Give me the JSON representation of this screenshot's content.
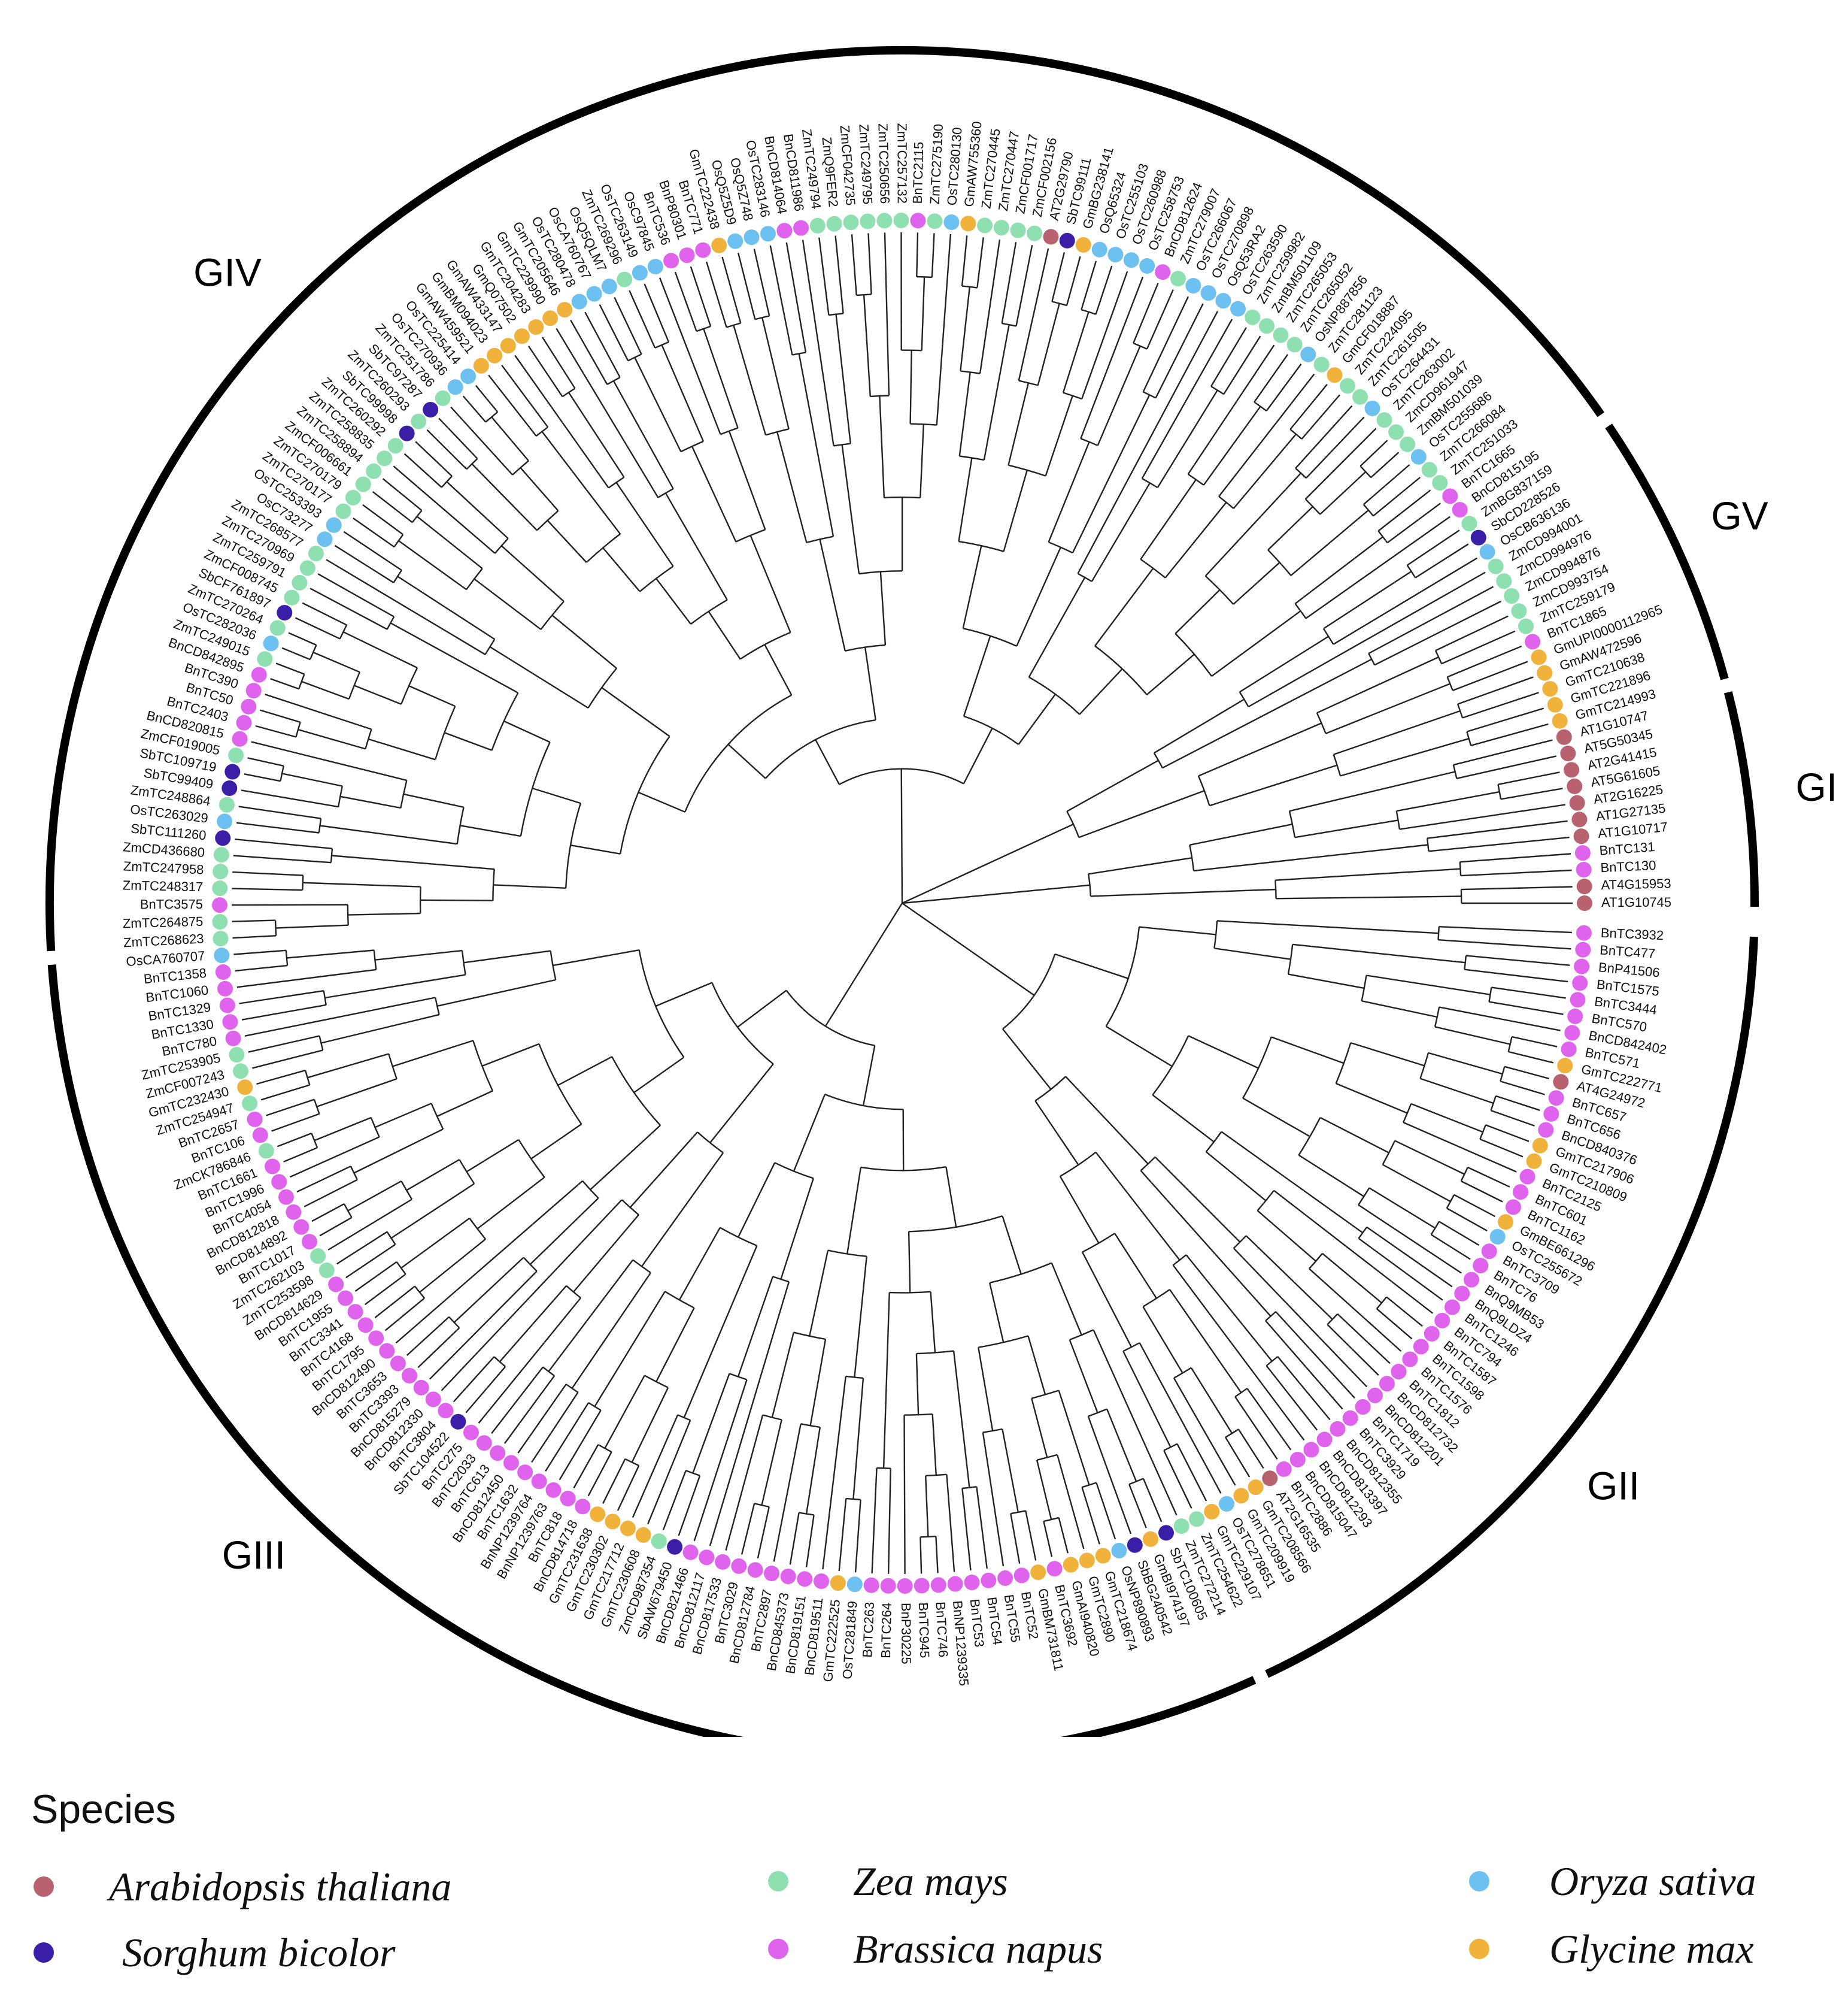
{
  "species": [
    {
      "key": "at",
      "name": "Arabidopsis thaliana",
      "color": "#b8616f"
    },
    {
      "key": "zm",
      "name": "Zea mays",
      "color": "#8fe0b0"
    },
    {
      "key": "os",
      "name": "Oryza sativa",
      "color": "#6cc1f0"
    },
    {
      "key": "sb",
      "name": "Sorghum bicolor",
      "color": "#3a1ea8"
    },
    {
      "key": "bn",
      "name": "Brassica napus",
      "color": "#e063ee"
    },
    {
      "key": "gm",
      "name": "Glycine max",
      "color": "#f0b23a"
    }
  ],
  "legend": {
    "title": "Species"
  },
  "clades": [
    {
      "label": "GI"
    },
    {
      "label": "GV"
    },
    {
      "label": "GIV"
    },
    {
      "label": "GIII"
    },
    {
      "label": "GII"
    }
  ],
  "leaves": [
    {
      "id": "AT1G10745",
      "sp": "at"
    },
    {
      "id": "AT4G15953",
      "sp": "at"
    },
    {
      "id": "BnTC130",
      "sp": "bn"
    },
    {
      "id": "BnTC131",
      "sp": "bn"
    },
    {
      "id": "AT1G10717",
      "sp": "at"
    },
    {
      "id": "AT1G27135",
      "sp": "at"
    },
    {
      "id": "AT2G16225",
      "sp": "at"
    },
    {
      "id": "AT5G61605",
      "sp": "at"
    },
    {
      "id": "AT2G41415",
      "sp": "at"
    },
    {
      "id": "AT5G50345",
      "sp": "at"
    },
    {
      "id": "AT1G10747",
      "sp": "at"
    },
    {
      "id": "GmTC214993",
      "sp": "gm"
    },
    {
      "id": "GmTC221896",
      "sp": "gm"
    },
    {
      "id": "GmTC210638",
      "sp": "gm"
    },
    {
      "id": "GmAW472596",
      "sp": "gm"
    },
    {
      "id": "GmUPI0000112965",
      "sp": "gm"
    },
    {
      "id": "BnTC1865",
      "sp": "bn"
    },
    {
      "id": "ZmTC259179",
      "sp": "zm"
    },
    {
      "id": "ZmCD993754",
      "sp": "zm"
    },
    {
      "id": "ZmCD994876",
      "sp": "zm"
    },
    {
      "id": "ZmCD994976",
      "sp": "zm"
    },
    {
      "id": "ZmCD994001",
      "sp": "zm"
    },
    {
      "id": "OsCB636136",
      "sp": "os"
    },
    {
      "id": "SbCD228526",
      "sp": "sb"
    },
    {
      "id": "ZmBG837159",
      "sp": "zm"
    },
    {
      "id": "BnCD815195",
      "sp": "bn"
    },
    {
      "id": "BnTC1665",
      "sp": "bn"
    },
    {
      "id": "ZmTC251033",
      "sp": "zm"
    },
    {
      "id": "ZmTC266084",
      "sp": "zm"
    },
    {
      "id": "OsTC255686",
      "sp": "os"
    },
    {
      "id": "ZmBM501039",
      "sp": "zm"
    },
    {
      "id": "ZmCD961947",
      "sp": "zm"
    },
    {
      "id": "ZmTC263002",
      "sp": "zm"
    },
    {
      "id": "OsTC264431",
      "sp": "os"
    },
    {
      "id": "ZmTC261505",
      "sp": "zm"
    },
    {
      "id": "ZmTC224095",
      "sp": "zm"
    },
    {
      "id": "GmCF018887",
      "sp": "gm"
    },
    {
      "id": "ZmTC281123",
      "sp": "zm"
    },
    {
      "id": "OsNP887856",
      "sp": "os"
    },
    {
      "id": "ZmTC265052",
      "sp": "zm"
    },
    {
      "id": "ZmTC265053",
      "sp": "zm"
    },
    {
      "id": "ZmBM501109",
      "sp": "zm"
    },
    {
      "id": "ZmTC259982",
      "sp": "zm"
    },
    {
      "id": "OsTC263590",
      "sp": "os"
    },
    {
      "id": "OsQ53RA2",
      "sp": "os"
    },
    {
      "id": "OsTC270898",
      "sp": "os"
    },
    {
      "id": "OsTC266067",
      "sp": "os"
    },
    {
      "id": "ZmTC279007",
      "sp": "zm"
    },
    {
      "id": "BnCD812624",
      "sp": "bn"
    },
    {
      "id": "OsTC258753",
      "sp": "os"
    },
    {
      "id": "OsTC260988",
      "sp": "os"
    },
    {
      "id": "OsTC255103",
      "sp": "os"
    },
    {
      "id": "OsQ65324",
      "sp": "os"
    },
    {
      "id": "GmBG238141",
      "sp": "gm"
    },
    {
      "id": "SbTC99111",
      "sp": "sb"
    },
    {
      "id": "AT2G29790",
      "sp": "at"
    },
    {
      "id": "ZmCF002156",
      "sp": "zm"
    },
    {
      "id": "ZmCF001717",
      "sp": "zm"
    },
    {
      "id": "ZmTC270447",
      "sp": "zm"
    },
    {
      "id": "ZmTC270445",
      "sp": "zm"
    },
    {
      "id": "GmAW755360",
      "sp": "gm"
    },
    {
      "id": "OsTC280130",
      "sp": "os"
    },
    {
      "id": "ZmTC275190",
      "sp": "zm"
    },
    {
      "id": "BnTC2115",
      "sp": "bn"
    },
    {
      "id": "ZmTC257132",
      "sp": "zm"
    },
    {
      "id": "ZmTC250656",
      "sp": "zm"
    },
    {
      "id": "ZmTC249795",
      "sp": "zm"
    },
    {
      "id": "ZmCF042735",
      "sp": "zm"
    },
    {
      "id": "ZmQ9FER2",
      "sp": "zm"
    },
    {
      "id": "ZmTC249794",
      "sp": "zm"
    },
    {
      "id": "BnCD811986",
      "sp": "bn"
    },
    {
      "id": "BnCD814064",
      "sp": "bn"
    },
    {
      "id": "OsTC283146",
      "sp": "os"
    },
    {
      "id": "OsQ5Z748",
      "sp": "os"
    },
    {
      "id": "OsQ5Z5D9",
      "sp": "os"
    },
    {
      "id": "GmTC222438",
      "sp": "gm"
    },
    {
      "id": "BnTC771",
      "sp": "bn"
    },
    {
      "id": "BnP80301",
      "sp": "bn"
    },
    {
      "id": "BnTC536",
      "sp": "bn"
    },
    {
      "id": "OsC97845",
      "sp": "os"
    },
    {
      "id": "OsTC263149",
      "sp": "os"
    },
    {
      "id": "ZmTC269296",
      "sp": "zm"
    },
    {
      "id": "OsQ5QLM7",
      "sp": "os"
    },
    {
      "id": "OsCA760767",
      "sp": "os"
    },
    {
      "id": "OsTC280478",
      "sp": "os"
    },
    {
      "id": "GmTC205646",
      "sp": "gm"
    },
    {
      "id": "GmTC229990",
      "sp": "gm"
    },
    {
      "id": "GmTC204283",
      "sp": "gm"
    },
    {
      "id": "GmQ07502",
      "sp": "gm"
    },
    {
      "id": "GmAW433147",
      "sp": "gm"
    },
    {
      "id": "GmBM094023",
      "sp": "gm"
    },
    {
      "id": "GmAW459521",
      "sp": "gm"
    },
    {
      "id": "OsTC225414",
      "sp": "os"
    },
    {
      "id": "OsTC270936",
      "sp": "os"
    },
    {
      "id": "ZmTC251786",
      "sp": "zm"
    },
    {
      "id": "SbTC97287",
      "sp": "sb"
    },
    {
      "id": "ZmTC260293",
      "sp": "zm"
    },
    {
      "id": "SbTC99998",
      "sp": "sb"
    },
    {
      "id": "ZmTC260292",
      "sp": "zm"
    },
    {
      "id": "ZmTC258835",
      "sp": "zm"
    },
    {
      "id": "ZmTC258894",
      "sp": "zm"
    },
    {
      "id": "ZmCF006661",
      "sp": "zm"
    },
    {
      "id": "ZmTC270179",
      "sp": "zm"
    },
    {
      "id": "ZmTC270177",
      "sp": "zm"
    },
    {
      "id": "OsTC253393",
      "sp": "os"
    },
    {
      "id": "OsC73277",
      "sp": "os"
    },
    {
      "id": "ZmTC268577",
      "sp": "zm"
    },
    {
      "id": "ZmTC270969",
      "sp": "zm"
    },
    {
      "id": "ZmTC259791",
      "sp": "zm"
    },
    {
      "id": "ZmCF008745",
      "sp": "zm"
    },
    {
      "id": "SbCF761897",
      "sp": "sb"
    },
    {
      "id": "ZmTC270264",
      "sp": "zm"
    },
    {
      "id": "OsTC282036",
      "sp": "os"
    },
    {
      "id": "ZmTC249015",
      "sp": "zm"
    },
    {
      "id": "BnCD842895",
      "sp": "bn"
    },
    {
      "id": "BnTC390",
      "sp": "bn"
    },
    {
      "id": "BnTC50",
      "sp": "bn"
    },
    {
      "id": "BnTC2403",
      "sp": "bn"
    },
    {
      "id": "BnCD820815",
      "sp": "bn"
    },
    {
      "id": "ZmCF019005",
      "sp": "zm"
    },
    {
      "id": "SbTC109719",
      "sp": "sb"
    },
    {
      "id": "SbTC99409",
      "sp": "sb"
    },
    {
      "id": "ZmTC248864",
      "sp": "zm"
    },
    {
      "id": "OsTC263029",
      "sp": "os"
    },
    {
      "id": "SbTC111260",
      "sp": "sb"
    },
    {
      "id": "ZmCD436680",
      "sp": "zm"
    },
    {
      "id": "ZmTC247958",
      "sp": "zm"
    },
    {
      "id": "ZmTC248317",
      "sp": "zm"
    },
    {
      "id": "BnTC3575",
      "sp": "bn"
    },
    {
      "id": "ZmTC264875",
      "sp": "zm"
    },
    {
      "id": "ZmTC268623",
      "sp": "zm"
    },
    {
      "id": "OsCA760707",
      "sp": "os"
    },
    {
      "id": "BnTC1358",
      "sp": "bn"
    },
    {
      "id": "BnTC1060",
      "sp": "bn"
    },
    {
      "id": "BnTC1329",
      "sp": "bn"
    },
    {
      "id": "BnTC1330",
      "sp": "bn"
    },
    {
      "id": "BnTC780",
      "sp": "bn"
    },
    {
      "id": "ZmTC253905",
      "sp": "zm"
    },
    {
      "id": "ZmCF007243",
      "sp": "zm"
    },
    {
      "id": "GmTC232430",
      "sp": "gm"
    },
    {
      "id": "ZmTC254947",
      "sp": "zm"
    },
    {
      "id": "BnTC2657",
      "sp": "bn"
    },
    {
      "id": "BnTC106",
      "sp": "bn"
    },
    {
      "id": "ZmCK786846",
      "sp": "zm"
    },
    {
      "id": "BnTC1661",
      "sp": "bn"
    },
    {
      "id": "BnTC1996",
      "sp": "bn"
    },
    {
      "id": "BnTC4054",
      "sp": "bn"
    },
    {
      "id": "BnCD812818",
      "sp": "bn"
    },
    {
      "id": "BnCD814892",
      "sp": "bn"
    },
    {
      "id": "BnTC1017",
      "sp": "bn"
    },
    {
      "id": "ZmTC262103",
      "sp": "zm"
    },
    {
      "id": "ZmTC253598",
      "sp": "zm"
    },
    {
      "id": "BnCD814629",
      "sp": "bn"
    },
    {
      "id": "BnTC1955",
      "sp": "bn"
    },
    {
      "id": "BnTC3341",
      "sp": "bn"
    },
    {
      "id": "BnTC4168",
      "sp": "bn"
    },
    {
      "id": "BnTC1795",
      "sp": "bn"
    },
    {
      "id": "BnCD812490",
      "sp": "bn"
    },
    {
      "id": "BnTC3653",
      "sp": "bn"
    },
    {
      "id": "BnTC3393",
      "sp": "bn"
    },
    {
      "id": "BnCD815279",
      "sp": "bn"
    },
    {
      "id": "BnCD812330",
      "sp": "bn"
    },
    {
      "id": "BnTC3804",
      "sp": "bn"
    },
    {
      "id": "SbTC104522",
      "sp": "sb"
    },
    {
      "id": "BnTC275",
      "sp": "bn"
    },
    {
      "id": "BnTC2033",
      "sp": "bn"
    },
    {
      "id": "BnTC613",
      "sp": "bn"
    },
    {
      "id": "BnCD812450",
      "sp": "bn"
    },
    {
      "id": "BnTC1632",
      "sp": "bn"
    },
    {
      "id": "BnNP1239764",
      "sp": "bn"
    },
    {
      "id": "BnNP1239763",
      "sp": "bn"
    },
    {
      "id": "BnTC818",
      "sp": "bn"
    },
    {
      "id": "BnCD814718",
      "sp": "bn"
    },
    {
      "id": "GmTC231638",
      "sp": "gm"
    },
    {
      "id": "GmTC230302",
      "sp": "gm"
    },
    {
      "id": "GmTC217712",
      "sp": "gm"
    },
    {
      "id": "GmTC230608",
      "sp": "gm"
    },
    {
      "id": "ZmCD987354",
      "sp": "zm"
    },
    {
      "id": "SbAW679450",
      "sp": "sb"
    },
    {
      "id": "BnCD821466",
      "sp": "bn"
    },
    {
      "id": "BnCD812117",
      "sp": "bn"
    },
    {
      "id": "BnCD817533",
      "sp": "bn"
    },
    {
      "id": "BnTC3029",
      "sp": "bn"
    },
    {
      "id": "BnCD812784",
      "sp": "bn"
    },
    {
      "id": "BnTC2897",
      "sp": "bn"
    },
    {
      "id": "BnCD845373",
      "sp": "bn"
    },
    {
      "id": "BnCD819151",
      "sp": "bn"
    },
    {
      "id": "BnCD819511",
      "sp": "bn"
    },
    {
      "id": "GmTC222525",
      "sp": "gm"
    },
    {
      "id": "OsTC281849",
      "sp": "os"
    },
    {
      "id": "BnTC263",
      "sp": "bn"
    },
    {
      "id": "BnTC264",
      "sp": "bn"
    },
    {
      "id": "BnP30225",
      "sp": "bn"
    },
    {
      "id": "BnTC945",
      "sp": "bn"
    },
    {
      "id": "BnTC746",
      "sp": "bn"
    },
    {
      "id": "BnNP1239335",
      "sp": "bn"
    },
    {
      "id": "BnTC53",
      "sp": "bn"
    },
    {
      "id": "BnTC54",
      "sp": "bn"
    },
    {
      "id": "BnTC55",
      "sp": "bn"
    },
    {
      "id": "BnTC52",
      "sp": "bn"
    },
    {
      "id": "GmBM731811",
      "sp": "gm"
    },
    {
      "id": "BnTC3692",
      "sp": "bn"
    },
    {
      "id": "GmAI940820",
      "sp": "gm"
    },
    {
      "id": "GmTC2890",
      "sp": "gm"
    },
    {
      "id": "GmTC218674",
      "sp": "gm"
    },
    {
      "id": "OsNP890893",
      "sp": "os"
    },
    {
      "id": "SbBG240542",
      "sp": "sb"
    },
    {
      "id": "GmBI974197",
      "sp": "gm"
    },
    {
      "id": "SbTC100605",
      "sp": "sb"
    },
    {
      "id": "ZmTC272214",
      "sp": "zm"
    },
    {
      "id": "ZmTC254622",
      "sp": "zm"
    },
    {
      "id": "GmTC229107",
      "sp": "gm"
    },
    {
      "id": "OsTC278651",
      "sp": "os"
    },
    {
      "id": "GmTC209919",
      "sp": "gm"
    },
    {
      "id": "GmTC208566",
      "sp": "gm"
    },
    {
      "id": "AT2G16535",
      "sp": "at"
    },
    {
      "id": "BnTC2886",
      "sp": "bn"
    },
    {
      "id": "BnCD815047",
      "sp": "bn"
    },
    {
      "id": "BnCD812293",
      "sp": "bn"
    },
    {
      "id": "BnCD813397",
      "sp": "bn"
    },
    {
      "id": "BnCD812355",
      "sp": "bn"
    },
    {
      "id": "BnTC3929",
      "sp": "bn"
    },
    {
      "id": "BnTC1719",
      "sp": "bn"
    },
    {
      "id": "BnCD812201",
      "sp": "bn"
    },
    {
      "id": "BnCD812732",
      "sp": "bn"
    },
    {
      "id": "BnTC1812",
      "sp": "bn"
    },
    {
      "id": "BnTC1576",
      "sp": "bn"
    },
    {
      "id": "BnTC1598",
      "sp": "bn"
    },
    {
      "id": "BnTC1587",
      "sp": "bn"
    },
    {
      "id": "BnTC794",
      "sp": "bn"
    },
    {
      "id": "BnTC1246",
      "sp": "bn"
    },
    {
      "id": "BnQ9LDZ4",
      "sp": "bn"
    },
    {
      "id": "BnQ9MB53",
      "sp": "bn"
    },
    {
      "id": "BnTC76",
      "sp": "bn"
    },
    {
      "id": "BnTC3709",
      "sp": "bn"
    },
    {
      "id": "OsTC255672",
      "sp": "os"
    },
    {
      "id": "GmBE661296",
      "sp": "gm"
    },
    {
      "id": "BnTC1162",
      "sp": "bn"
    },
    {
      "id": "BnTC601",
      "sp": "bn"
    },
    {
      "id": "BnTC2125",
      "sp": "bn"
    },
    {
      "id": "GmTC210809",
      "sp": "gm"
    },
    {
      "id": "GmTC217906",
      "sp": "gm"
    },
    {
      "id": "BnCD840376",
      "sp": "bn"
    },
    {
      "id": "BnTC656",
      "sp": "bn"
    },
    {
      "id": "BnTC657",
      "sp": "bn"
    },
    {
      "id": "AT4G24972",
      "sp": "at"
    },
    {
      "id": "GmTC222771",
      "sp": "gm"
    },
    {
      "id": "BnTC571",
      "sp": "bn"
    },
    {
      "id": "BnCD842402",
      "sp": "bn"
    },
    {
      "id": "BnTC570",
      "sp": "bn"
    },
    {
      "id": "BnTC3444",
      "sp": "bn"
    },
    {
      "id": "BnTC1575",
      "sp": "bn"
    },
    {
      "id": "BnP41506",
      "sp": "bn"
    },
    {
      "id": "BnTC477",
      "sp": "bn"
    },
    {
      "id": "BnTC3932",
      "sp": "bn"
    }
  ]
}
